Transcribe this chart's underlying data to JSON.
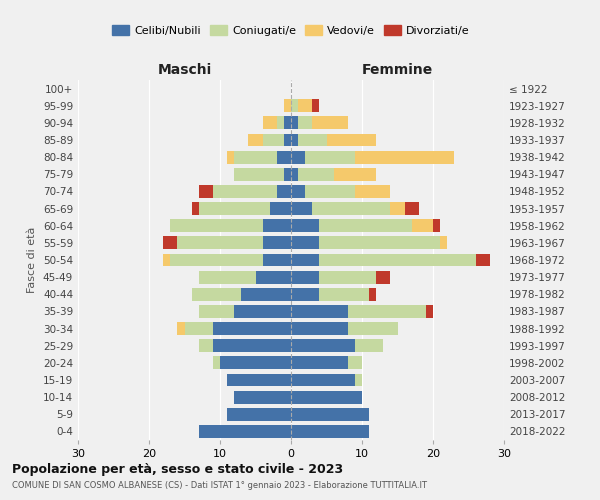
{
  "age_groups": [
    "0-4",
    "5-9",
    "10-14",
    "15-19",
    "20-24",
    "25-29",
    "30-34",
    "35-39",
    "40-44",
    "45-49",
    "50-54",
    "55-59",
    "60-64",
    "65-69",
    "70-74",
    "75-79",
    "80-84",
    "85-89",
    "90-94",
    "95-99",
    "100+"
  ],
  "birth_years": [
    "2018-2022",
    "2013-2017",
    "2008-2012",
    "2003-2007",
    "1998-2002",
    "1993-1997",
    "1988-1992",
    "1983-1987",
    "1978-1982",
    "1973-1977",
    "1968-1972",
    "1963-1967",
    "1958-1962",
    "1953-1957",
    "1948-1952",
    "1943-1947",
    "1938-1942",
    "1933-1937",
    "1928-1932",
    "1923-1927",
    "≤ 1922"
  ],
  "maschi": {
    "celibe": [
      13,
      9,
      8,
      9,
      10,
      11,
      11,
      8,
      7,
      5,
      4,
      4,
      4,
      3,
      2,
      1,
      2,
      1,
      1,
      0,
      0
    ],
    "coniugato": [
      0,
      0,
      0,
      0,
      1,
      2,
      4,
      5,
      7,
      8,
      13,
      12,
      13,
      10,
      9,
      7,
      6,
      3,
      1,
      0,
      0
    ],
    "vedovo": [
      0,
      0,
      0,
      0,
      0,
      0,
      1,
      0,
      0,
      0,
      1,
      0,
      0,
      0,
      0,
      0,
      1,
      2,
      2,
      1,
      0
    ],
    "divorziato": [
      0,
      0,
      0,
      0,
      0,
      0,
      0,
      0,
      0,
      0,
      0,
      2,
      0,
      1,
      2,
      0,
      0,
      0,
      0,
      0,
      0
    ]
  },
  "femmine": {
    "nubile": [
      11,
      11,
      10,
      9,
      8,
      9,
      8,
      8,
      4,
      4,
      4,
      4,
      4,
      3,
      2,
      1,
      2,
      1,
      1,
      0,
      0
    ],
    "coniugata": [
      0,
      0,
      0,
      1,
      2,
      4,
      7,
      11,
      7,
      8,
      22,
      17,
      13,
      11,
      7,
      5,
      7,
      4,
      2,
      1,
      0
    ],
    "vedova": [
      0,
      0,
      0,
      0,
      0,
      0,
      0,
      0,
      0,
      0,
      0,
      1,
      3,
      2,
      5,
      6,
      14,
      7,
      5,
      2,
      0
    ],
    "divorziata": [
      0,
      0,
      0,
      0,
      0,
      0,
      0,
      1,
      1,
      2,
      2,
      0,
      1,
      2,
      0,
      0,
      0,
      0,
      0,
      1,
      0
    ]
  },
  "colors": {
    "celibe": "#4472a8",
    "coniugato": "#c5d9a0",
    "vedovo": "#f5c96b",
    "divorziato": "#c0392b"
  },
  "title1": "Popolazione per età, sesso e stato civile - 2023",
  "title2": "COMUNE DI SAN COSMO ALBANESE (CS) - Dati ISTAT 1° gennaio 2023 - Elaborazione TUTTITALIA.IT",
  "xlabel_left": "Maschi",
  "xlabel_right": "Femmine",
  "ylabel_left": "Fasce di età",
  "xlim": 30,
  "legend_labels": [
    "Celibi/Nubili",
    "Coniugati/e",
    "Vedovi/e",
    "Divorziati/e"
  ],
  "background_color": "#f0f0f0"
}
